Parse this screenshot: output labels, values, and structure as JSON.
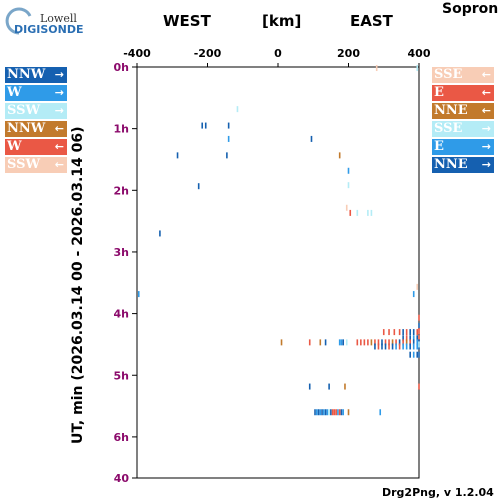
{
  "header": {
    "logo_top": "Lowell",
    "logo_bottom": "DIGISONDE",
    "west": "WEST",
    "km": "[km]",
    "east": "EAST",
    "station": "Sopron"
  },
  "footer": "Drg2Png, v 1.2.04",
  "legend_left": [
    {
      "label": "NNW",
      "arrow": "→",
      "color": "#1560b0"
    },
    {
      "label": "W",
      "arrow": "→",
      "color": "#2f9be8"
    },
    {
      "label": "SSW",
      "arrow": "→",
      "color": "#b4ecf6"
    },
    {
      "label": "NNW",
      "arrow": "←",
      "color": "#c27a2c"
    },
    {
      "label": "W",
      "arrow": "←",
      "color": "#ea5845"
    },
    {
      "label": "SSW",
      "arrow": "←",
      "color": "#f8cdb6"
    }
  ],
  "legend_right": [
    {
      "label": "SSE",
      "arrow": "←",
      "color": "#f8cdb6"
    },
    {
      "label": "E",
      "arrow": "←",
      "color": "#ea5845"
    },
    {
      "label": "NNE",
      "arrow": "←",
      "color": "#c27a2c"
    },
    {
      "label": "SSE",
      "arrow": "→",
      "color": "#b4ecf6"
    },
    {
      "label": "E",
      "arrow": "→",
      "color": "#2f9be8"
    },
    {
      "label": "NNE",
      "arrow": "→",
      "color": "#1560b0"
    }
  ],
  "chart_data": {
    "type": "scatter",
    "xlabel": "[km]",
    "ylabel": "UT, min (2026.03.14 00 - 2026.03.14 06)",
    "xlim": [
      -400,
      400
    ],
    "ylim_min": [
      0,
      400
    ],
    "xticks": [
      -400,
      -200,
      0,
      200,
      400
    ],
    "yticks": [
      {
        "min": 0,
        "label": "0h"
      },
      {
        "min": 60,
        "label": "1h"
      },
      {
        "min": 120,
        "label": "2h"
      },
      {
        "min": 180,
        "label": "3h"
      },
      {
        "min": 240,
        "label": "4h"
      },
      {
        "min": 300,
        "label": "5h"
      },
      {
        "min": 360,
        "label": "6h"
      },
      {
        "min": 400,
        "label": "40"
      }
    ],
    "points": [
      {
        "x": 395,
        "t": 1,
        "c": "#b4ecf6"
      },
      {
        "x": 280,
        "t": 1,
        "c": "#f8cdb6"
      },
      {
        "x": -115,
        "t": 41,
        "c": "#b4ecf6"
      },
      {
        "x": -215,
        "t": 57,
        "c": "#1560b0"
      },
      {
        "x": -205,
        "t": 57,
        "c": "#1560b0"
      },
      {
        "x": -140,
        "t": 57,
        "c": "#1560b0"
      },
      {
        "x": -140,
        "t": 70,
        "c": "#2f9be8"
      },
      {
        "x": 95,
        "t": 70,
        "c": "#1560b0"
      },
      {
        "x": -285,
        "t": 86,
        "c": "#1560b0"
      },
      {
        "x": -145,
        "t": 86,
        "c": "#1560b0"
      },
      {
        "x": 175,
        "t": 86,
        "c": "#c27a2c"
      },
      {
        "x": 200,
        "t": 101,
        "c": "#2f9be8"
      },
      {
        "x": 200,
        "t": 115,
        "c": "#b4ecf6"
      },
      {
        "x": -225,
        "t": 116,
        "c": "#1560b0"
      },
      {
        "x": 195,
        "t": 137,
        "c": "#f8cdb6"
      },
      {
        "x": 205,
        "t": 142,
        "c": "#ea5845"
      },
      {
        "x": 225,
        "t": 142,
        "c": "#b4ecf6"
      },
      {
        "x": 255,
        "t": 142,
        "c": "#b4ecf6"
      },
      {
        "x": 265,
        "t": 142,
        "c": "#b4ecf6"
      },
      {
        "x": -335,
        "t": 162,
        "c": "#1560b0"
      },
      {
        "x": -395,
        "t": 221,
        "c": "#2f9be8"
      },
      {
        "x": 385,
        "t": 221,
        "c": "#2f9be8"
      },
      {
        "x": 395,
        "t": 214,
        "c": "#f8cdb6"
      },
      {
        "x": 400,
        "t": 244,
        "c": "#ea5845"
      },
      {
        "x": 400,
        "t": 252,
        "c": "#1560b0"
      },
      {
        "x": 400,
        "t": 257,
        "c": "#ea5845"
      },
      {
        "x": 300,
        "t": 258,
        "c": "#ea5845"
      },
      {
        "x": 315,
        "t": 258,
        "c": "#ea5845"
      },
      {
        "x": 330,
        "t": 258,
        "c": "#ea5845"
      },
      {
        "x": 345,
        "t": 258,
        "c": "#ea5845"
      },
      {
        "x": 355,
        "t": 258,
        "c": "#1560b0"
      },
      {
        "x": 365,
        "t": 258,
        "c": "#ea5845"
      },
      {
        "x": 375,
        "t": 258,
        "c": "#1560b0"
      },
      {
        "x": 385,
        "t": 258,
        "c": "#1560b0"
      },
      {
        "x": 395,
        "t": 258,
        "c": "#ea5845"
      },
      {
        "x": 355,
        "t": 264,
        "c": "#1560b0"
      },
      {
        "x": 365,
        "t": 264,
        "c": "#ea5845"
      },
      {
        "x": 375,
        "t": 264,
        "c": "#1560b0"
      },
      {
        "x": 385,
        "t": 264,
        "c": "#2f9be8"
      },
      {
        "x": 395,
        "t": 264,
        "c": "#1560b0"
      },
      {
        "x": 400,
        "t": 264,
        "c": "#ea5845"
      },
      {
        "x": 10,
        "t": 268,
        "c": "#c27a2c"
      },
      {
        "x": 90,
        "t": 268,
        "c": "#ea5845"
      },
      {
        "x": 120,
        "t": 268,
        "c": "#c27a2c"
      },
      {
        "x": 135,
        "t": 268,
        "c": "#1560b0"
      },
      {
        "x": 175,
        "t": 268,
        "c": "#2f9be8"
      },
      {
        "x": 180,
        "t": 268,
        "c": "#2f9be8"
      },
      {
        "x": 185,
        "t": 268,
        "c": "#1560b0"
      },
      {
        "x": 195,
        "t": 268,
        "c": "#b4ecf6"
      },
      {
        "x": 225,
        "t": 268,
        "c": "#ea5845"
      },
      {
        "x": 235,
        "t": 268,
        "c": "#ea5845"
      },
      {
        "x": 245,
        "t": 268,
        "c": "#ea5845"
      },
      {
        "x": 255,
        "t": 268,
        "c": "#ea5845"
      },
      {
        "x": 265,
        "t": 268,
        "c": "#c27a2c"
      },
      {
        "x": 275,
        "t": 268,
        "c": "#ea5845"
      },
      {
        "x": 285,
        "t": 268,
        "c": "#ea5845"
      },
      {
        "x": 295,
        "t": 268,
        "c": "#1560b0"
      },
      {
        "x": 305,
        "t": 268,
        "c": "#ea5845"
      },
      {
        "x": 315,
        "t": 268,
        "c": "#ea5845"
      },
      {
        "x": 325,
        "t": 268,
        "c": "#c27a2c"
      },
      {
        "x": 335,
        "t": 268,
        "c": "#ea5845"
      },
      {
        "x": 345,
        "t": 268,
        "c": "#1560b0"
      },
      {
        "x": 355,
        "t": 268,
        "c": "#ea5845"
      },
      {
        "x": 365,
        "t": 268,
        "c": "#c27a2c"
      },
      {
        "x": 375,
        "t": 268,
        "c": "#ea5845"
      },
      {
        "x": 385,
        "t": 268,
        "c": "#1560b0"
      },
      {
        "x": 395,
        "t": 268,
        "c": "#2f9be8"
      },
      {
        "x": 400,
        "t": 268,
        "c": "#1560b0"
      },
      {
        "x": 275,
        "t": 272,
        "c": "#1560b0"
      },
      {
        "x": 285,
        "t": 272,
        "c": "#ea5845"
      },
      {
        "x": 295,
        "t": 272,
        "c": "#1560b0"
      },
      {
        "x": 305,
        "t": 272,
        "c": "#1560b0"
      },
      {
        "x": 315,
        "t": 272,
        "c": "#ea5845"
      },
      {
        "x": 325,
        "t": 272,
        "c": "#1560b0"
      },
      {
        "x": 335,
        "t": 272,
        "c": "#2f9be8"
      },
      {
        "x": 345,
        "t": 272,
        "c": "#ea5845"
      },
      {
        "x": 355,
        "t": 272,
        "c": "#2f9be8"
      },
      {
        "x": 365,
        "t": 272,
        "c": "#2f9be8"
      },
      {
        "x": 375,
        "t": 272,
        "c": "#1560b0"
      },
      {
        "x": 385,
        "t": 272,
        "c": "#2f9be8"
      },
      {
        "x": 395,
        "t": 272,
        "c": "#2f9be8"
      },
      {
        "x": 400,
        "t": 272,
        "c": "#1560b0"
      },
      {
        "x": 375,
        "t": 280,
        "c": "#1560b0"
      },
      {
        "x": 385,
        "t": 280,
        "c": "#2f9be8"
      },
      {
        "x": 395,
        "t": 280,
        "c": "#1560b0"
      },
      {
        "x": 400,
        "t": 280,
        "c": "#1560b0"
      },
      {
        "x": 400,
        "t": 270,
        "c": "#b4ecf6"
      },
      {
        "x": 90,
        "t": 311,
        "c": "#1560b0"
      },
      {
        "x": 145,
        "t": 311,
        "c": "#1560b0"
      },
      {
        "x": 190,
        "t": 311,
        "c": "#c27a2c"
      },
      {
        "x": 400,
        "t": 311,
        "c": "#ea5845"
      },
      {
        "x": 105,
        "t": 336,
        "c": "#1560b0"
      },
      {
        "x": 110,
        "t": 336,
        "c": "#2f9be8"
      },
      {
        "x": 115,
        "t": 336,
        "c": "#1560b0"
      },
      {
        "x": 120,
        "t": 336,
        "c": "#2f9be8"
      },
      {
        "x": 125,
        "t": 336,
        "c": "#1560b0"
      },
      {
        "x": 130,
        "t": 336,
        "c": "#2f9be8"
      },
      {
        "x": 135,
        "t": 336,
        "c": "#1560b0"
      },
      {
        "x": 140,
        "t": 336,
        "c": "#2f9be8"
      },
      {
        "x": 145,
        "t": 336,
        "c": "#b4ecf6"
      },
      {
        "x": 150,
        "t": 336,
        "c": "#1560b0"
      },
      {
        "x": 155,
        "t": 336,
        "c": "#ea5845"
      },
      {
        "x": 160,
        "t": 336,
        "c": "#ea5845"
      },
      {
        "x": 165,
        "t": 336,
        "c": "#ea5845"
      },
      {
        "x": 170,
        "t": 336,
        "c": "#2f9be8"
      },
      {
        "x": 175,
        "t": 336,
        "c": "#ea5845"
      },
      {
        "x": 180,
        "t": 336,
        "c": "#1560b0"
      },
      {
        "x": 185,
        "t": 336,
        "c": "#2f9be8"
      },
      {
        "x": 200,
        "t": 336,
        "c": "#c27a2c"
      },
      {
        "x": 290,
        "t": 336,
        "c": "#2f9be8"
      }
    ]
  }
}
